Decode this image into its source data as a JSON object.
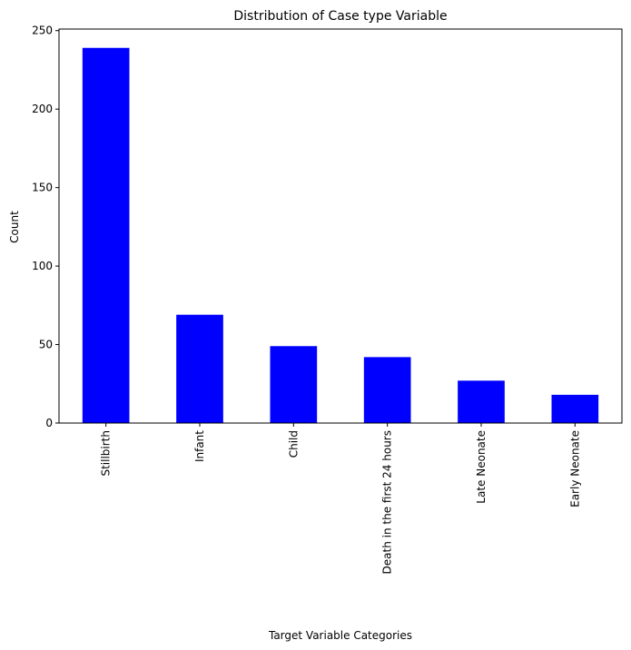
{
  "chart_data": {
    "type": "bar",
    "title": "Distribution of Case type Variable",
    "xlabel": "Target Variable Categories",
    "ylabel": "Count",
    "categories": [
      "Stillbirth",
      "Infant",
      "Child",
      "Death in the first 24 hours",
      "Late Neonate",
      "Early Neonate"
    ],
    "values": [
      239,
      69,
      49,
      42,
      27,
      18
    ],
    "ylim": [
      0,
      251
    ],
    "yticks": [
      0,
      50,
      100,
      150,
      200,
      250
    ],
    "bar_color": "#0000ff",
    "grid": false,
    "legend": "none"
  }
}
